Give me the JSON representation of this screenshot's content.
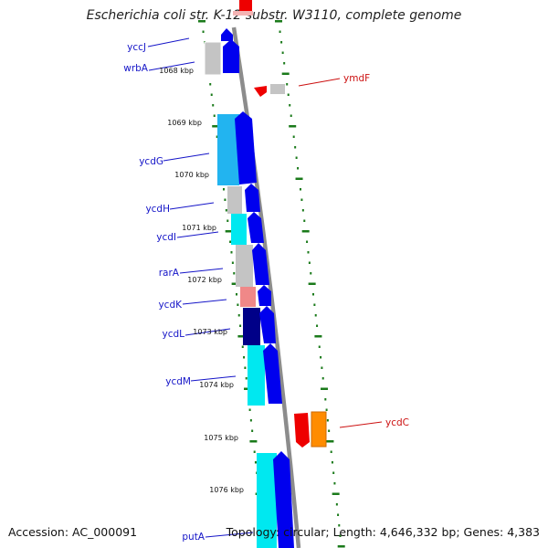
{
  "title": "Escherichia coli str. K-12 substr. W3110, complete genome",
  "accession": "Accession: AC_000091",
  "topology": "Topology: circular; Length: 4,646,332 bp; Genes: 4,383",
  "colors": {
    "forward_gene": "#0000ee",
    "reverse_gene": "#ee0000",
    "blast_label": "#1515c8",
    "reverse_label": "#cc1010",
    "backbone": "#8c8c8c",
    "tick": "#1a7a1a",
    "gc_cyan": "#00e8f0",
    "gc_lightblue": "#22b4f0",
    "gc_gray": "#c4c4c4",
    "gc_pink": "#f08888",
    "gc_navy": "#000088",
    "orange": "#ff8c00"
  },
  "scale_labels": [
    "1068 kbp",
    "1069 kbp",
    "1070 kbp",
    "1071 kbp",
    "1072 kbp",
    "1073 kbp",
    "1074 kbp",
    "1075 kbp",
    "1076 kbp"
  ],
  "genes_forward": [
    {
      "name": "yccJ",
      "feature": "forward-gene"
    },
    {
      "name": "wrbA",
      "feature": "forward-gene"
    },
    {
      "name": "ycdG",
      "feature": "forward-gene"
    },
    {
      "name": "ycdH",
      "feature": "forward-gene"
    },
    {
      "name": "ycdI",
      "feature": "forward-gene"
    },
    {
      "name": "rarA",
      "feature": "forward-gene"
    },
    {
      "name": "ycdK",
      "feature": "forward-gene"
    },
    {
      "name": "ycdL",
      "feature": "forward-gene"
    },
    {
      "name": "ycdM",
      "feature": "forward-gene"
    },
    {
      "name": "putA",
      "feature": "forward-gene"
    }
  ],
  "genes_reverse": [
    {
      "name": "ymdF",
      "feature": "reverse-gene"
    },
    {
      "name": "ycdC",
      "feature": "reverse-gene"
    }
  ]
}
